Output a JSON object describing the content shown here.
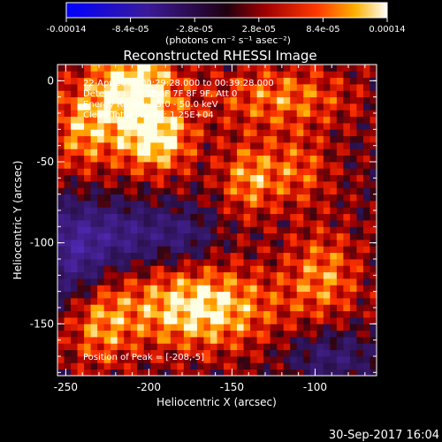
{
  "colorbar": {
    "tick_labels": [
      "-0.00014",
      "-8.4e-05",
      "-2.8e-05",
      "2.8e-05",
      "8.4e-05",
      "0.00014"
    ],
    "unit_label": "(photons cm⁻² s⁻¹ asec⁻²)",
    "range": [
      -0.00014,
      0.00014
    ]
  },
  "chart_data": {
    "type": "heatmap",
    "title": "Reconstructed RHESSI Image",
    "xlabel": "Heliocentric X (arcsec)",
    "ylabel": "Heliocentric Y (arcsec)",
    "xlim": [
      -255,
      -63
    ],
    "ylim": [
      -182,
      10
    ],
    "x_ticks": [
      -250,
      -200,
      -150,
      -100
    ],
    "y_ticks": [
      0,
      -50,
      -100,
      -150
    ],
    "annotations": [
      "22-Apr-2016 00:29:28.000 to 00:39:28.000",
      "Detectors: 3F 5F 6F 7F 8F 9F, Att 0",
      "Energy Range: 25.0 - 50.0 keV",
      "Clean     Total counts: 1.25E+04"
    ],
    "peak_label": "Position of Peak = [-208,-5]",
    "peak": [
      -208,
      -5
    ],
    "colormap": "red-temperature-diverging",
    "blobs": [
      {
        "x": -208,
        "y": -5,
        "amp": 1.0,
        "sx": 18,
        "sy": 18
      },
      {
        "x": -196,
        "y": -38,
        "amp": 0.8,
        "sx": 16,
        "sy": 14
      },
      {
        "x": -240,
        "y": -30,
        "amp": 0.6,
        "sx": 14,
        "sy": 20
      },
      {
        "x": -120,
        "y": -10,
        "amp": 0.55,
        "sx": 30,
        "sy": 14
      },
      {
        "x": -140,
        "y": -60,
        "amp": 0.6,
        "sx": 12,
        "sy": 16
      },
      {
        "x": -170,
        "y": -140,
        "amp": 0.9,
        "sx": 32,
        "sy": 18
      },
      {
        "x": -230,
        "y": -150,
        "amp": 0.55,
        "sx": 14,
        "sy": 20
      },
      {
        "x": -95,
        "y": -120,
        "amp": 0.55,
        "sx": 16,
        "sy": 20
      },
      {
        "x": -110,
        "y": -55,
        "amp": 0.45,
        "sx": 14,
        "sy": 16
      },
      {
        "x": -245,
        "y": -105,
        "amp": -0.8,
        "sx": 14,
        "sy": 22
      },
      {
        "x": -215,
        "y": -95,
        "amp": -0.6,
        "sx": 16,
        "sy": 14
      },
      {
        "x": -180,
        "y": -95,
        "amp": -0.5,
        "sx": 14,
        "sy": 12
      },
      {
        "x": -90,
        "y": -170,
        "amp": -0.5,
        "sx": 18,
        "sy": 12
      }
    ]
  },
  "footer": {
    "timestamp": "30-Sep-2017 16:04"
  }
}
